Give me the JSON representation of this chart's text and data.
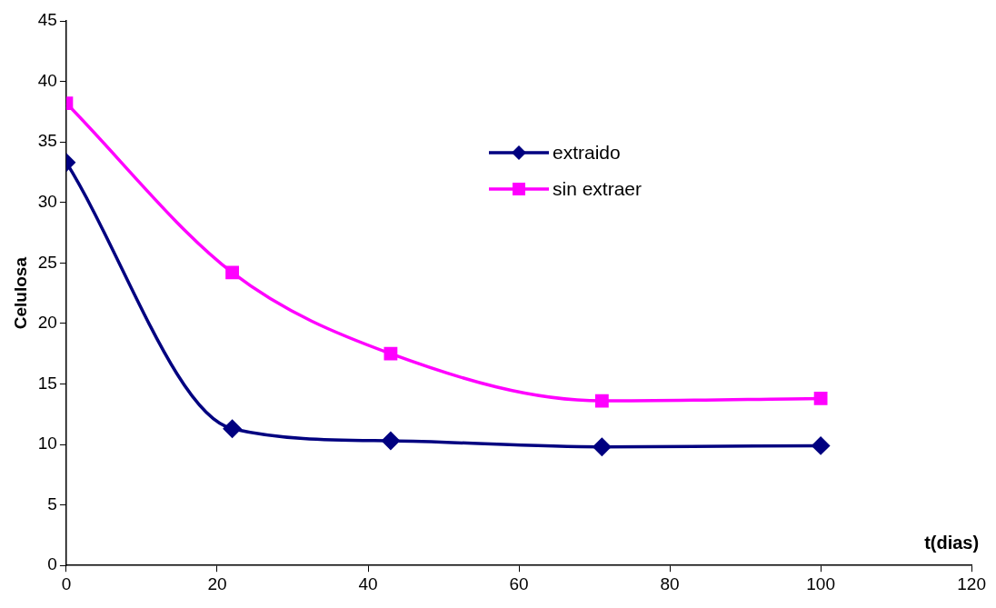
{
  "chart_data": {
    "type": "line",
    "xlabel": "t(dias)",
    "ylabel": "Celulosa",
    "xlim": [
      0,
      120
    ],
    "xticks": [
      0,
      20,
      40,
      60,
      80,
      100,
      120
    ],
    "ylim": [
      0,
      45
    ],
    "yticks": [
      0,
      5,
      10,
      15,
      20,
      25,
      30,
      35,
      40,
      45
    ],
    "grid": false,
    "legend": "top right",
    "series": [
      {
        "name": "extraido",
        "color": "#000080",
        "marker": "diamond",
        "x": [
          0,
          22,
          43,
          71,
          100
        ],
        "values": [
          33.3,
          11.3,
          10.3,
          9.8,
          9.9
        ]
      },
      {
        "name": "sin extraer",
        "color": "#ff00ff",
        "marker": "square",
        "x": [
          0,
          22,
          43,
          71,
          100
        ],
        "values": [
          38.2,
          24.2,
          17.5,
          13.6,
          13.8
        ]
      }
    ]
  }
}
